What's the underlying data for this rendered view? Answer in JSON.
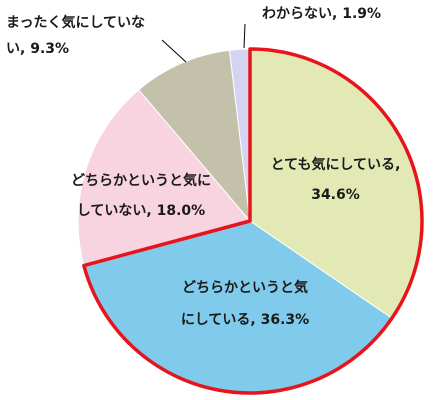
{
  "chart_data": {
    "type": "pie",
    "categories": [
      "とても気にしている",
      "どちらかというと気にしている",
      "どちらかというと気にしていない",
      "まったく気にしていない",
      "わからない"
    ],
    "values": [
      34.6,
      36.3,
      18.0,
      9.3,
      1.9
    ],
    "value_labels": [
      "34.6%",
      "36.3%",
      "18.0%",
      "9.3%",
      "1.9%"
    ],
    "label_separator": ", ",
    "colors": [
      "#e3e9b5",
      "#80cbeb",
      "#f8d4e1",
      "#c4c1ab",
      "#d5d3f2"
    ],
    "highlight": {
      "slices": [
        0,
        1
      ],
      "color": "#e8141b"
    }
  }
}
